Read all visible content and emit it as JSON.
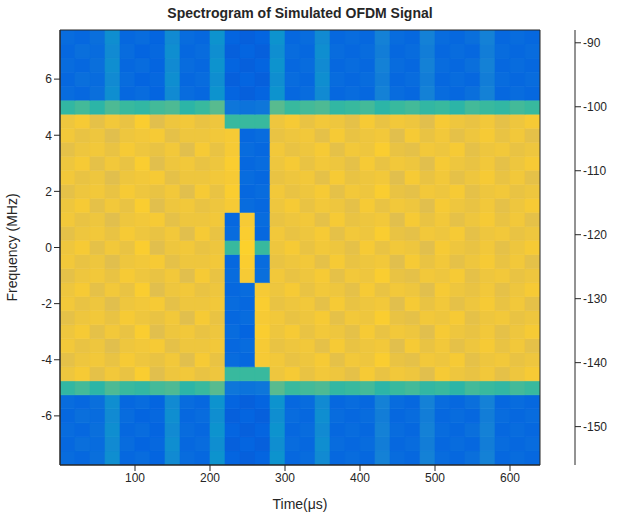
{
  "chart_data": {
    "type": "heatmap",
    "title": "Spectrogram of Simulated OFDM Signal",
    "xlabel": "Time(μs)",
    "ylabel": "Frequency (MHz)",
    "xlim": [
      0,
      640
    ],
    "xticks": [
      100,
      200,
      300,
      400,
      500,
      600
    ],
    "ylim": [
      -7.75,
      7.75
    ],
    "yticks": [
      -6,
      -4,
      -2,
      0,
      2,
      4,
      6
    ],
    "grid": false,
    "x_edges": [
      0,
      20,
      40,
      60,
      80,
      100,
      120,
      140,
      160,
      180,
      200,
      220,
      240,
      260,
      280,
      300,
      320,
      340,
      360,
      380,
      400,
      420,
      440,
      460,
      480,
      500,
      520,
      540,
      560,
      580,
      600,
      620,
      640
    ],
    "y_edges": [
      -7.75,
      -7.25,
      -6.75,
      -6.25,
      -5.75,
      -5.25,
      -4.75,
      -4.25,
      -3.75,
      -3.25,
      -2.75,
      -2.25,
      -1.75,
      -1.25,
      -0.75,
      -0.25,
      0.25,
      0.75,
      1.25,
      1.75,
      2.25,
      2.75,
      3.25,
      3.75,
      4.25,
      4.75,
      5.25,
      5.75,
      6.25,
      6.75,
      7.25,
      7.75
    ],
    "z": [
      [
        -145,
        -146,
        -144,
        -136,
        -146,
        -145,
        -147,
        -137,
        -145,
        -146,
        -135,
        -147,
        -148,
        -147,
        -135,
        -146,
        -145,
        -137,
        -146,
        -145,
        -146,
        -139,
        -145,
        -146,
        -139,
        -145,
        -146,
        -144,
        -139,
        -146,
        -145,
        -146
      ],
      [
        -146,
        -144,
        -145,
        -137,
        -145,
        -147,
        -146,
        -136,
        -146,
        -145,
        -136,
        -148,
        -147,
        -148,
        -136,
        -145,
        -146,
        -136,
        -145,
        -146,
        -145,
        -140,
        -146,
        -145,
        -140,
        -146,
        -145,
        -146,
        -140,
        -145,
        -146,
        -145
      ],
      [
        -145,
        -146,
        -144,
        -136,
        -146,
        -145,
        -147,
        -137,
        -145,
        -146,
        -135,
        -147,
        -148,
        -147,
        -135,
        -146,
        -145,
        -137,
        -146,
        -145,
        -146,
        -139,
        -145,
        -146,
        -139,
        -145,
        -146,
        -144,
        -139,
        -146,
        -145,
        -146
      ],
      [
        -146,
        -144,
        -145,
        -137,
        -145,
        -147,
        -146,
        -136,
        -146,
        -145,
        -136,
        -148,
        -147,
        -148,
        -136,
        -145,
        -146,
        -136,
        -145,
        -146,
        -145,
        -140,
        -146,
        -145,
        -140,
        -146,
        -145,
        -146,
        -140,
        -145,
        -146,
        -145
      ],
      [
        -145,
        -146,
        -144,
        -136,
        -146,
        -145,
        -147,
        -137,
        -145,
        -146,
        -135,
        -147,
        -148,
        -147,
        -135,
        -146,
        -145,
        -137,
        -146,
        -145,
        -146,
        -139,
        -145,
        -146,
        -139,
        -145,
        -146,
        -144,
        -139,
        -146,
        -145,
        -146
      ],
      [
        -123,
        -121,
        -124,
        -120,
        -122,
        -123,
        -121,
        -120,
        -124,
        -122,
        -119,
        -142,
        -143,
        -142,
        -119,
        -122,
        -121,
        -120,
        -123,
        -122,
        -121,
        -124,
        -122,
        -121,
        -123,
        -122,
        -124,
        -121,
        -122,
        -123,
        -121,
        -122
      ],
      [
        -100,
        -98,
        -102,
        -99,
        -101,
        -97,
        -103,
        -100,
        -99,
        -101,
        -100,
        -122,
        -122,
        -122,
        -100,
        -98,
        -101,
        -99,
        -100,
        -102,
        -98,
        -101,
        -99,
        -100,
        -103,
        -98,
        -100,
        -101,
        -99,
        -102,
        -100,
        -98
      ],
      [
        -102,
        -100,
        -99,
        -101,
        -98,
        -100,
        -101,
        -99,
        -103,
        -98,
        -101,
        -145,
        -146,
        -98,
        -99,
        -101,
        -100,
        -98,
        -102,
        -99,
        -100,
        -97,
        -101,
        -102,
        -99,
        -100,
        -98,
        -102,
        -100,
        -99,
        -101,
        -100
      ],
      [
        -99,
        -101,
        -100,
        -103,
        -100,
        -99,
        -98,
        -102,
        -100,
        -100,
        -99,
        -146,
        -145,
        -98,
        -101,
        -100,
        -99,
        -102,
        -98,
        -101,
        -100,
        -99,
        -103,
        -98,
        -101,
        -99,
        -102,
        -100,
        -98,
        -101,
        -99,
        -102
      ],
      [
        -100,
        -98,
        -102,
        -99,
        -101,
        -97,
        -103,
        -100,
        -99,
        -101,
        -100,
        -145,
        -147,
        -97,
        -100,
        -98,
        -101,
        -99,
        -100,
        -102,
        -98,
        -101,
        -99,
        -100,
        -103,
        -98,
        -100,
        -101,
        -99,
        -102,
        -100,
        -98
      ],
      [
        -102,
        -100,
        -99,
        -101,
        -98,
        -100,
        -101,
        -99,
        -103,
        -98,
        -101,
        -146,
        -145,
        -98,
        -99,
        -101,
        -100,
        -98,
        -102,
        -99,
        -100,
        -97,
        -101,
        -102,
        -99,
        -100,
        -98,
        -102,
        -100,
        -99,
        -101,
        -100
      ],
      [
        -99,
        -101,
        -100,
        -103,
        -100,
        -99,
        -98,
        -102,
        -100,
        -100,
        -99,
        -145,
        -146,
        -97,
        -101,
        -100,
        -99,
        -102,
        -98,
        -101,
        -100,
        -99,
        -103,
        -98,
        -101,
        -99,
        -102,
        -100,
        -98,
        -101,
        -99,
        -102
      ],
      [
        -100,
        -98,
        -102,
        -99,
        -101,
        -97,
        -103,
        -100,
        -99,
        -101,
        -100,
        -146,
        -145,
        -98,
        -100,
        -98,
        -101,
        -99,
        -100,
        -102,
        -98,
        -101,
        -99,
        -100,
        -103,
        -98,
        -100,
        -101,
        -99,
        -102,
        -100,
        -98
      ],
      [
        -102,
        -100,
        -99,
        -101,
        -98,
        -100,
        -101,
        -99,
        -103,
        -98,
        -101,
        -145,
        -98,
        -144,
        -99,
        -101,
        -100,
        -98,
        -102,
        -99,
        -100,
        -97,
        -101,
        -102,
        -99,
        -100,
        -98,
        -102,
        -100,
        -99,
        -101,
        -100
      ],
      [
        -99,
        -101,
        -100,
        -103,
        -100,
        -99,
        -98,
        -102,
        -100,
        -100,
        -99,
        -146,
        -97,
        -145,
        -101,
        -100,
        -99,
        -102,
        -98,
        -101,
        -100,
        -99,
        -103,
        -98,
        -101,
        -99,
        -102,
        -100,
        -98,
        -101,
        -99,
        -102
      ],
      [
        -100,
        -98,
        -102,
        -99,
        -101,
        -97,
        -103,
        -100,
        -99,
        -101,
        -100,
        -122,
        -96,
        -122,
        -100,
        -98,
        -101,
        -99,
        -100,
        -102,
        -98,
        -101,
        -99,
        -100,
        -103,
        -98,
        -100,
        -101,
        -99,
        -102,
        -100,
        -98
      ],
      [
        -102,
        -100,
        -99,
        -101,
        -98,
        -100,
        -101,
        -99,
        -103,
        -98,
        -101,
        -145,
        -97,
        -146,
        -99,
        -101,
        -100,
        -98,
        -102,
        -99,
        -100,
        -97,
        -101,
        -102,
        -99,
        -100,
        -98,
        -102,
        -100,
        -99,
        -101,
        -100
      ],
      [
        -99,
        -101,
        -100,
        -103,
        -100,
        -99,
        -98,
        -102,
        -100,
        -100,
        -99,
        -146,
        -98,
        -145,
        -101,
        -100,
        -99,
        -102,
        -98,
        -101,
        -100,
        -99,
        -103,
        -98,
        -101,
        -99,
        -102,
        -100,
        -98,
        -101,
        -99,
        -102
      ],
      [
        -100,
        -98,
        -102,
        -99,
        -101,
        -97,
        -103,
        -100,
        -99,
        -101,
        -100,
        -98,
        -145,
        -146,
        -100,
        -98,
        -101,
        -99,
        -100,
        -102,
        -98,
        -101,
        -99,
        -100,
        -103,
        -98,
        -100,
        -101,
        -99,
        -102,
        -100,
        -98
      ],
      [
        -102,
        -100,
        -99,
        -101,
        -98,
        -100,
        -101,
        -99,
        -103,
        -98,
        -101,
        -97,
        -146,
        -145,
        -99,
        -101,
        -100,
        -98,
        -102,
        -99,
        -100,
        -97,
        -101,
        -102,
        -99,
        -100,
        -98,
        -102,
        -100,
        -99,
        -101,
        -100
      ],
      [
        -99,
        -101,
        -100,
        -103,
        -100,
        -99,
        -98,
        -102,
        -100,
        -100,
        -99,
        -98,
        -145,
        -146,
        -101,
        -100,
        -99,
        -102,
        -98,
        -101,
        -100,
        -99,
        -103,
        -98,
        -101,
        -99,
        -102,
        -100,
        -98,
        -101,
        -99,
        -102
      ],
      [
        -100,
        -98,
        -102,
        -99,
        -101,
        -97,
        -103,
        -100,
        -99,
        -101,
        -100,
        -97,
        -146,
        -145,
        -100,
        -98,
        -101,
        -99,
        -100,
        -102,
        -98,
        -101,
        -99,
        -100,
        -103,
        -98,
        -100,
        -101,
        -99,
        -102,
        -100,
        -98
      ],
      [
        -102,
        -100,
        -99,
        -101,
        -98,
        -100,
        -101,
        -99,
        -103,
        -98,
        -101,
        -98,
        -145,
        -146,
        -99,
        -101,
        -100,
        -98,
        -102,
        -99,
        -100,
        -97,
        -101,
        -102,
        -99,
        -100,
        -98,
        -102,
        -100,
        -99,
        -101,
        -100
      ],
      [
        -99,
        -101,
        -100,
        -103,
        -100,
        -99,
        -98,
        -102,
        -100,
        -100,
        -99,
        -98,
        -146,
        -145,
        -101,
        -100,
        -99,
        -102,
        -98,
        -101,
        -100,
        -99,
        -103,
        -98,
        -101,
        -99,
        -102,
        -100,
        -98,
        -101,
        -99,
        -102
      ],
      [
        -100,
        -98,
        -102,
        -99,
        -101,
        -97,
        -103,
        -100,
        -99,
        -101,
        -100,
        -122,
        -122,
        -122,
        -100,
        -98,
        -101,
        -99,
        -100,
        -102,
        -98,
        -101,
        -99,
        -100,
        -103,
        -98,
        -100,
        -101,
        -99,
        -102,
        -100,
        -98
      ],
      [
        -123,
        -121,
        -124,
        -120,
        -122,
        -123,
        -121,
        -120,
        -124,
        -122,
        -119,
        -142,
        -143,
        -142,
        -119,
        -122,
        -121,
        -120,
        -123,
        -122,
        -121,
        -124,
        -122,
        -121,
        -123,
        -122,
        -124,
        -121,
        -122,
        -123,
        -121,
        -122
      ],
      [
        -145,
        -146,
        -144,
        -136,
        -146,
        -145,
        -147,
        -137,
        -145,
        -146,
        -135,
        -147,
        -148,
        -147,
        -135,
        -146,
        -145,
        -137,
        -146,
        -145,
        -146,
        -139,
        -145,
        -146,
        -139,
        -145,
        -146,
        -144,
        -139,
        -146,
        -145,
        -146
      ],
      [
        -146,
        -144,
        -145,
        -137,
        -145,
        -147,
        -146,
        -136,
        -146,
        -145,
        -136,
        -148,
        -147,
        -148,
        -136,
        -145,
        -146,
        -136,
        -145,
        -146,
        -145,
        -140,
        -146,
        -145,
        -140,
        -146,
        -145,
        -146,
        -140,
        -145,
        -146,
        -145
      ],
      [
        -145,
        -146,
        -144,
        -136,
        -146,
        -145,
        -147,
        -137,
        -145,
        -146,
        -135,
        -147,
        -148,
        -147,
        -135,
        -146,
        -145,
        -137,
        -146,
        -145,
        -146,
        -139,
        -145,
        -146,
        -139,
        -145,
        -146,
        -144,
        -139,
        -146,
        -145,
        -146
      ],
      [
        -146,
        -144,
        -145,
        -137,
        -145,
        -147,
        -146,
        -136,
        -146,
        -145,
        -136,
        -148,
        -147,
        -148,
        -136,
        -145,
        -146,
        -136,
        -145,
        -146,
        -145,
        -140,
        -146,
        -145,
        -140,
        -146,
        -145,
        -146,
        -140,
        -145,
        -146,
        -145
      ],
      [
        -145,
        -146,
        -144,
        -136,
        -146,
        -145,
        -147,
        -137,
        -145,
        -146,
        -135,
        -147,
        -148,
        -147,
        -135,
        -146,
        -145,
        -137,
        -146,
        -145,
        -146,
        -139,
        -145,
        -146,
        -139,
        -145,
        -146,
        -144,
        -139,
        -146,
        -145,
        -146
      ]
    ],
    "colorbar": {
      "range": [
        -156,
        -88
      ],
      "ticks": [
        -150,
        -140,
        -130,
        -120,
        -110,
        -100,
        -90
      ]
    }
  }
}
